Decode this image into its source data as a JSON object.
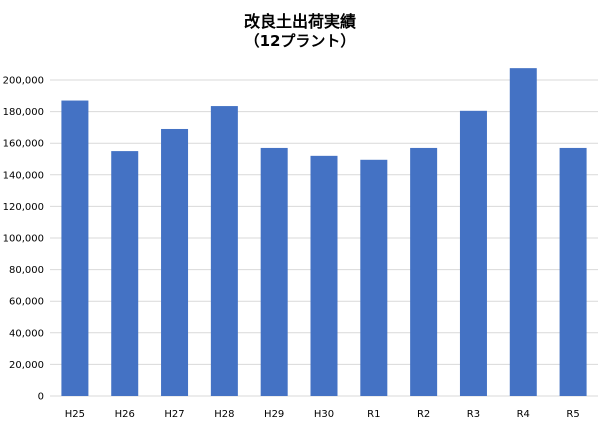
{
  "chart_data": {
    "type": "bar",
    "title": "改良土出荷実績",
    "subtitle": "（12プラント）",
    "categories": [
      "H25",
      "H26",
      "H27",
      "H28",
      "H29",
      "H30",
      "R1",
      "R2",
      "R3",
      "R4",
      "R5"
    ],
    "series": [
      {
        "values": [
          187000,
          155000,
          169000,
          183500,
          157000,
          152000,
          149500,
          157000,
          180500,
          207500,
          157000
        ]
      }
    ],
    "yticks": [
      "0",
      "20,000",
      "40,000",
      "60,000",
      "80,000",
      "100,000",
      "120,000",
      "140,000",
      "160,000",
      "180,000",
      "200,000"
    ],
    "ylim": [
      0,
      200000
    ],
    "grid": true,
    "legend": "none",
    "bar_color": "#4472c4",
    "grid_color": "#d9d9d9"
  }
}
